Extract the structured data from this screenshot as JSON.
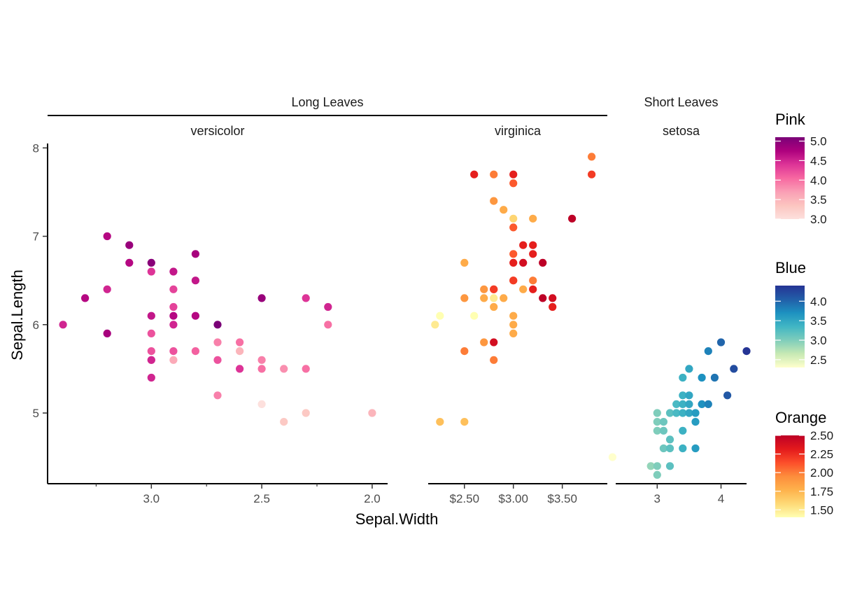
{
  "chart_data": {
    "type": "scatter",
    "xlabel": "Sepal.Width",
    "ylabel": "Sepal.Length",
    "ylim": [
      4.2,
      8.05
    ],
    "y_ticks": [
      5,
      6,
      7,
      8
    ],
    "groups": [
      {
        "label": "Long Leaves",
        "panels": [
          "versicolor",
          "virginica"
        ]
      },
      {
        "label": "Short Leaves",
        "panels": [
          "setosa"
        ]
      }
    ],
    "panels": [
      {
        "name": "versicolor",
        "color_scale": "Pink",
        "x_reversed": true,
        "xlim": [
          3.47,
          1.93
        ],
        "x_ticks": [
          3.0,
          2.5,
          2.0
        ],
        "x_tick_labels": [
          "3.0",
          "2.5",
          "2.0"
        ],
        "x_minor_ticks": [
          3.25,
          2.75,
          2.25
        ],
        "points": [
          [
            3.4,
            6.0,
            4.5
          ],
          [
            3.3,
            6.3,
            4.7
          ],
          [
            3.2,
            7.0,
            4.7
          ],
          [
            3.2,
            6.4,
            4.5
          ],
          [
            3.2,
            5.9,
            4.8
          ],
          [
            3.1,
            6.9,
            4.9
          ],
          [
            3.1,
            6.7,
            4.7
          ],
          [
            3.0,
            6.7,
            5.0
          ],
          [
            3.0,
            6.6,
            4.4
          ],
          [
            3.0,
            6.1,
            4.6
          ],
          [
            3.0,
            5.9,
            4.2
          ],
          [
            3.0,
            5.7,
            4.2
          ],
          [
            3.0,
            5.6,
            4.1
          ],
          [
            3.0,
            5.6,
            4.5
          ],
          [
            3.0,
            5.4,
            4.5
          ],
          [
            2.9,
            6.6,
            4.6
          ],
          [
            2.9,
            6.4,
            4.3
          ],
          [
            2.9,
            6.2,
            4.3
          ],
          [
            2.9,
            6.1,
            4.7
          ],
          [
            2.9,
            6.0,
            4.5
          ],
          [
            2.9,
            5.7,
            4.2
          ],
          [
            2.9,
            5.6,
            3.6
          ],
          [
            2.8,
            6.8,
            4.8
          ],
          [
            2.8,
            6.5,
            4.6
          ],
          [
            2.8,
            6.1,
            4.7
          ],
          [
            2.8,
            5.7,
            4.1
          ],
          [
            2.7,
            6.0,
            5.1
          ],
          [
            2.7,
            5.8,
            3.9
          ],
          [
            2.7,
            5.6,
            4.2
          ],
          [
            2.7,
            5.2,
            3.9
          ],
          [
            2.6,
            5.8,
            4.0
          ],
          [
            2.6,
            5.7,
            3.5
          ],
          [
            2.6,
            5.5,
            4.4
          ],
          [
            2.5,
            6.3,
            4.9
          ],
          [
            2.5,
            5.6,
            3.9
          ],
          [
            2.5,
            5.5,
            4.0
          ],
          [
            2.5,
            5.1,
            3.0
          ],
          [
            2.4,
            5.5,
            3.8
          ],
          [
            2.4,
            4.9,
            3.3
          ],
          [
            2.3,
            6.3,
            4.4
          ],
          [
            2.3,
            5.5,
            4.0
          ],
          [
            2.3,
            5.0,
            3.3
          ],
          [
            2.2,
            6.2,
            4.5
          ],
          [
            2.2,
            6.0,
            4.0
          ],
          [
            2.0,
            5.0,
            3.5
          ]
        ]
      },
      {
        "name": "virginica",
        "color_scale": "Orange",
        "x_reversed": false,
        "xlim": [
          2.13,
          3.96
        ],
        "x_ticks": [
          2.5,
          3.0,
          3.5
        ],
        "x_tick_labels": [
          "$2.50",
          "$3.00",
          "$3.50"
        ],
        "x_minor_ticks": [],
        "points": [
          [
            2.2,
            6.0,
            1.5
          ],
          [
            2.25,
            4.9,
            1.7
          ],
          [
            2.25,
            6.1,
            1.4
          ],
          [
            2.5,
            6.7,
            1.8
          ],
          [
            2.5,
            6.3,
            1.9
          ],
          [
            2.5,
            5.7,
            2.0
          ],
          [
            2.5,
            4.9,
            1.7
          ],
          [
            2.6,
            7.7,
            2.3
          ],
          [
            2.6,
            6.1,
            1.4
          ],
          [
            2.7,
            6.4,
            1.9
          ],
          [
            2.7,
            6.3,
            1.8
          ],
          [
            2.7,
            5.8,
            1.9
          ],
          [
            2.8,
            7.7,
            2.0
          ],
          [
            2.8,
            7.4,
            1.9
          ],
          [
            2.8,
            6.4,
            2.1
          ],
          [
            2.8,
            6.4,
            2.2
          ],
          [
            2.8,
            6.3,
            1.5
          ],
          [
            2.8,
            6.2,
            1.8
          ],
          [
            2.8,
            5.8,
            2.4
          ],
          [
            2.8,
            5.6,
            2.0
          ],
          [
            2.9,
            7.3,
            1.8
          ],
          [
            2.9,
            6.3,
            1.8
          ],
          [
            3.0,
            7.7,
            2.3
          ],
          [
            3.0,
            7.6,
            2.1
          ],
          [
            3.0,
            7.2,
            1.6
          ],
          [
            3.0,
            7.1,
            2.1
          ],
          [
            3.0,
            6.8,
            2.1
          ],
          [
            3.0,
            6.7,
            2.3
          ],
          [
            3.0,
            6.5,
            2.0
          ],
          [
            3.0,
            6.5,
            2.2
          ],
          [
            3.0,
            6.1,
            1.8
          ],
          [
            3.0,
            6.0,
            1.8
          ],
          [
            3.0,
            5.9,
            1.8
          ],
          [
            3.1,
            6.9,
            2.3
          ],
          [
            3.1,
            6.7,
            2.4
          ],
          [
            3.1,
            6.4,
            1.8
          ],
          [
            3.2,
            7.2,
            1.8
          ],
          [
            3.2,
            6.9,
            2.3
          ],
          [
            3.2,
            6.8,
            2.3
          ],
          [
            3.2,
            6.5,
            2.0
          ],
          [
            3.2,
            6.4,
            2.3
          ],
          [
            3.3,
            6.7,
            2.5
          ],
          [
            3.3,
            6.3,
            2.5
          ],
          [
            3.4,
            6.3,
            2.4
          ],
          [
            3.4,
            6.2,
            2.3
          ],
          [
            3.6,
            7.2,
            2.5
          ],
          [
            3.8,
            7.9,
            2.0
          ],
          [
            3.8,
            7.7,
            2.2
          ]
        ]
      },
      {
        "name": "setosa",
        "color_scale": "Blue",
        "x_reversed": false,
        "xlim": [
          2.35,
          4.4
        ],
        "x_ticks": [
          3,
          4
        ],
        "x_tick_labels": [
          "3",
          "4"
        ],
        "x_minor_ticks": [],
        "points": [
          [
            2.3,
            4.5,
            2.3
          ],
          [
            2.9,
            4.4,
            2.9
          ],
          [
            3.0,
            5.0,
            3.0
          ],
          [
            3.0,
            4.9,
            3.0
          ],
          [
            3.0,
            4.8,
            3.0
          ],
          [
            3.0,
            4.4,
            3.0
          ],
          [
            3.0,
            4.3,
            3.0
          ],
          [
            3.1,
            4.9,
            3.1
          ],
          [
            3.1,
            4.8,
            3.1
          ],
          [
            3.1,
            4.6,
            3.1
          ],
          [
            3.2,
            5.0,
            3.2
          ],
          [
            3.2,
            4.7,
            3.2
          ],
          [
            3.2,
            4.6,
            3.2
          ],
          [
            3.2,
            4.4,
            3.2
          ],
          [
            3.3,
            5.1,
            3.3
          ],
          [
            3.3,
            5.0,
            3.3
          ],
          [
            3.4,
            5.4,
            3.4
          ],
          [
            3.4,
            5.2,
            3.4
          ],
          [
            3.4,
            5.1,
            3.4
          ],
          [
            3.4,
            5.0,
            3.4
          ],
          [
            3.4,
            4.8,
            3.4
          ],
          [
            3.4,
            4.6,
            3.4
          ],
          [
            3.5,
            5.5,
            3.5
          ],
          [
            3.5,
            5.2,
            3.5
          ],
          [
            3.5,
            5.1,
            3.5
          ],
          [
            3.5,
            5.0,
            3.5
          ],
          [
            3.6,
            5.0,
            3.6
          ],
          [
            3.6,
            4.9,
            3.6
          ],
          [
            3.6,
            4.6,
            3.6
          ],
          [
            3.7,
            5.4,
            3.7
          ],
          [
            3.7,
            5.1,
            3.7
          ],
          [
            3.8,
            5.7,
            3.8
          ],
          [
            3.8,
            5.1,
            3.8
          ],
          [
            3.9,
            5.4,
            3.9
          ],
          [
            4.0,
            5.8,
            4.0
          ],
          [
            4.1,
            5.2,
            4.1
          ],
          [
            4.2,
            5.5,
            4.2
          ],
          [
            4.4,
            5.7,
            4.4
          ]
        ]
      }
    ],
    "legends": [
      {
        "title": "Pink",
        "domain": [
          3.0,
          5.1
        ],
        "breaks": [
          "5.0",
          "4.5",
          "4.0",
          "3.5",
          "3.0"
        ],
        "break_values": [
          5.0,
          4.5,
          4.0,
          3.5,
          3.0
        ],
        "colors": [
          "#fde0dd",
          "#fcc5c0",
          "#fa9fb5",
          "#f768a1",
          "#dd3497",
          "#ae017e",
          "#7a0177"
        ]
      },
      {
        "title": "Blue",
        "domain": [
          2.3,
          4.4
        ],
        "breaks": [
          "4.0",
          "3.5",
          "3.0",
          "2.5"
        ],
        "break_values": [
          4.0,
          3.5,
          3.0,
          2.5
        ],
        "colors": [
          "#ffffcc",
          "#c7e9b4",
          "#7fcdbb",
          "#41b6c4",
          "#1d91c0",
          "#225ea8",
          "#253494"
        ]
      },
      {
        "title": "Orange",
        "domain": [
          1.4,
          2.5
        ],
        "breaks": [
          "2.50",
          "2.25",
          "2.00",
          "1.75",
          "1.50"
        ],
        "break_values": [
          2.5,
          2.25,
          2.0,
          1.75,
          1.5
        ],
        "colors": [
          "#ffffb2",
          "#fed976",
          "#feb24c",
          "#fd8d3c",
          "#fc4e2a",
          "#e31a1c",
          "#bd0026"
        ]
      }
    ]
  }
}
